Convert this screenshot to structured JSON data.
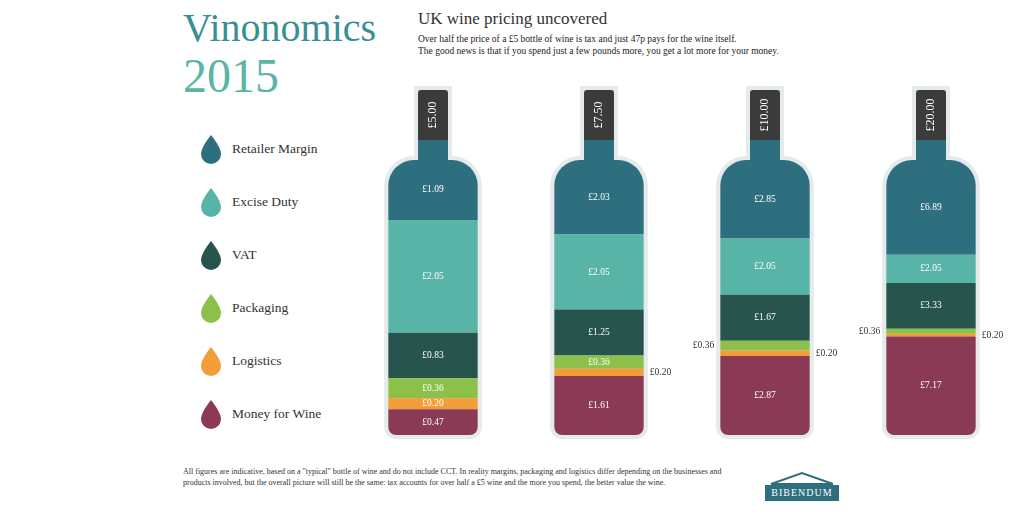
{
  "title": "Vinonomics",
  "year": "2015",
  "heading": "UK wine pricing uncovered",
  "subtitle": [
    "Over half the price of a £5 bottle of wine is tax and just 47p pays for the wine itself.",
    "The good news is that if you spend just a few pounds more, you get a lot more for your money."
  ],
  "chart_data": [
    {
      "type": "bar",
      "stacked": true,
      "categories": [
        "£5.00"
      ],
      "ylim": [
        0,
        5
      ],
      "tick_labels": false,
      "data_labels": true,
      "legend": "left",
      "series": [
        {
          "name": "Retailer Margin",
          "color": "#2d6f7e",
          "values": [
            1.09
          ],
          "value_labels": [
            "£1.09"
          ]
        },
        {
          "name": "Excise Duty",
          "color": "#58b4a6",
          "values": [
            2.05
          ],
          "value_labels": [
            "£2.05"
          ]
        },
        {
          "name": "VAT",
          "color": "#27544c",
          "values": [
            0.83
          ],
          "value_labels": [
            "£0.83"
          ]
        },
        {
          "name": "Packaging",
          "color": "#8cc04b",
          "values": [
            0.36
          ],
          "value_labels": [
            "£0.36"
          ]
        },
        {
          "name": "Logistics",
          "color": "#f29d38",
          "values": [
            0.2
          ],
          "value_labels": [
            "£0.20"
          ]
        },
        {
          "name": "Money for Wine",
          "color": "#8b3a55",
          "values": [
            0.47
          ],
          "value_labels": [
            "£0.47"
          ]
        }
      ]
    },
    {
      "type": "bar",
      "stacked": true,
      "categories": [
        "£7.50"
      ],
      "ylim": [
        0,
        7.5
      ],
      "tick_labels": false,
      "data_labels": true,
      "legend": "left",
      "series": [
        {
          "name": "Retailer Margin",
          "color": "#2d6f7e",
          "values": [
            2.03
          ],
          "value_labels": [
            "£2.03"
          ]
        },
        {
          "name": "Excise Duty",
          "color": "#58b4a6",
          "values": [
            2.05
          ],
          "value_labels": [
            "£2.05"
          ]
        },
        {
          "name": "VAT",
          "color": "#27544c",
          "values": [
            1.25
          ],
          "value_labels": [
            "£1.25"
          ]
        },
        {
          "name": "Packaging",
          "color": "#8cc04b",
          "values": [
            0.36
          ],
          "value_labels": [
            "£0.36"
          ]
        },
        {
          "name": "Logistics",
          "color": "#f29d38",
          "values": [
            0.2
          ],
          "value_labels": [
            "£0.20"
          ]
        },
        {
          "name": "Money for Wine",
          "color": "#8b3a55",
          "values": [
            1.61
          ],
          "value_labels": [
            "£1.61"
          ]
        }
      ]
    },
    {
      "type": "bar",
      "stacked": true,
      "categories": [
        "£10.00"
      ],
      "ylim": [
        0,
        10
      ],
      "tick_labels": false,
      "data_labels": true,
      "legend": "left",
      "series": [
        {
          "name": "Retailer Margin",
          "color": "#2d6f7e",
          "values": [
            2.85
          ],
          "value_labels": [
            "£2.85"
          ]
        },
        {
          "name": "Excise Duty",
          "color": "#58b4a6",
          "values": [
            2.05
          ],
          "value_labels": [
            "£2.05"
          ]
        },
        {
          "name": "VAT",
          "color": "#27544c",
          "values": [
            1.67
          ],
          "value_labels": [
            "£1.67"
          ]
        },
        {
          "name": "Packaging",
          "color": "#8cc04b",
          "values": [
            0.36
          ],
          "value_labels": [
            "£0.36"
          ]
        },
        {
          "name": "Logistics",
          "color": "#f29d38",
          "values": [
            0.2
          ],
          "value_labels": [
            "£0.20"
          ]
        },
        {
          "name": "Money for Wine",
          "color": "#8b3a55",
          "values": [
            2.87
          ],
          "value_labels": [
            "£2.87"
          ]
        }
      ]
    },
    {
      "type": "bar",
      "stacked": true,
      "categories": [
        "£20.00"
      ],
      "ylim": [
        0,
        20
      ],
      "tick_labels": false,
      "data_labels": true,
      "legend": "left",
      "series": [
        {
          "name": "Retailer Margin",
          "color": "#2d6f7e",
          "values": [
            6.89
          ],
          "value_labels": [
            "£6.89"
          ]
        },
        {
          "name": "Excise Duty",
          "color": "#58b4a6",
          "values": [
            2.05
          ],
          "value_labels": [
            "£2.05"
          ]
        },
        {
          "name": "VAT",
          "color": "#27544c",
          "values": [
            3.33
          ],
          "value_labels": [
            "£3.33"
          ]
        },
        {
          "name": "Packaging",
          "color": "#8cc04b",
          "values": [
            0.36
          ],
          "value_labels": [
            "£0.36"
          ]
        },
        {
          "name": "Logistics",
          "color": "#f29d38",
          "values": [
            0.2
          ],
          "value_labels": [
            "£0.20"
          ]
        },
        {
          "name": "Money for Wine",
          "color": "#8b3a55",
          "values": [
            7.17
          ],
          "value_labels": [
            "£7.17"
          ]
        }
      ]
    }
  ],
  "footnote": "All figures are indicative, based on a \"typical\" bottle of wine and do not include CCT. In reality margins, packaging and logistics differ depending on the businesses and products involved, but the overall picture will still be the same: tax accounts for over half a £5 wine and the more you spend, the better value the wine.",
  "brand": "BIBENDUM"
}
